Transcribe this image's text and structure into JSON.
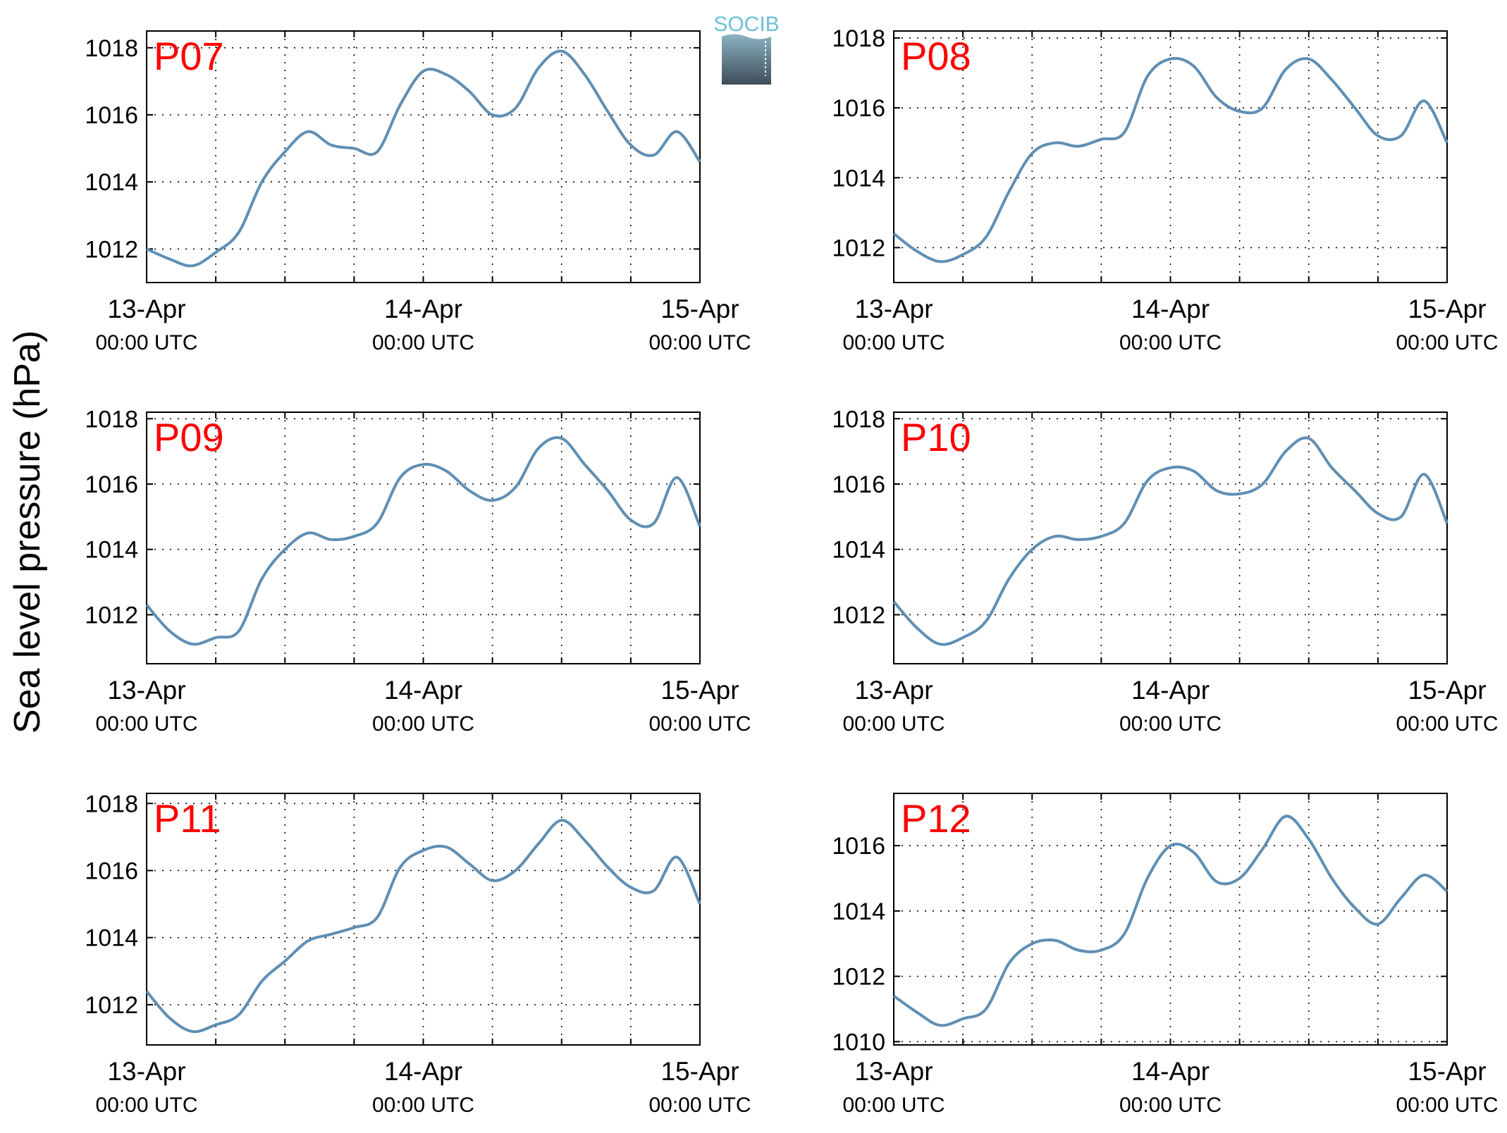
{
  "ylabel": "Sea level pressure (hPa)",
  "logo": {
    "text": "SOCIB"
  },
  "colors": {
    "line": "#5f8fb4",
    "label": "#ff0000",
    "grid": "#000000"
  },
  "chart_data": [
    {
      "type": "line",
      "title": "P07",
      "x_ticks": [
        {
          "date": "13-Apr",
          "time": "00:00 UTC"
        },
        {
          "date": "14-Apr",
          "time": "00:00 UTC"
        },
        {
          "date": "15-Apr",
          "time": "00:00 UTC"
        }
      ],
      "xlim": [
        "13-Apr 00:00 UTC",
        "15-Apr 00:00 UTC"
      ],
      "ylim": [
        1011,
        1018.5
      ],
      "yticks": [
        1012,
        1014,
        1016,
        1018
      ],
      "grid": true,
      "series": [
        {
          "x_hours": [
            0,
            2,
            4,
            6,
            8,
            10,
            12,
            14,
            16,
            18,
            20,
            22,
            24,
            26,
            28,
            30,
            32,
            34,
            36,
            38,
            40,
            42,
            44,
            46,
            48
          ],
          "values": [
            1012.0,
            1011.7,
            1011.5,
            1011.9,
            1012.5,
            1014.0,
            1014.9,
            1015.5,
            1015.1,
            1015.0,
            1014.9,
            1016.3,
            1017.3,
            1017.2,
            1016.7,
            1016.0,
            1016.2,
            1017.4,
            1017.9,
            1017.2,
            1016.1,
            1015.1,
            1014.8,
            1015.5,
            1014.6
          ]
        }
      ]
    },
    {
      "type": "line",
      "title": "P08",
      "x_ticks": [
        {
          "date": "13-Apr",
          "time": "00:00 UTC"
        },
        {
          "date": "14-Apr",
          "time": "00:00 UTC"
        },
        {
          "date": "15-Apr",
          "time": "00:00 UTC"
        }
      ],
      "xlim": [
        "13-Apr 00:00 UTC",
        "15-Apr 00:00 UTC"
      ],
      "ylim": [
        1011,
        1018.2
      ],
      "yticks": [
        1012,
        1014,
        1016,
        1018
      ],
      "grid": true,
      "series": [
        {
          "x_hours": [
            0,
            2,
            4,
            6,
            8,
            10,
            12,
            14,
            16,
            18,
            20,
            22,
            24,
            26,
            28,
            30,
            32,
            34,
            36,
            38,
            40,
            42,
            44,
            46,
            48
          ],
          "values": [
            1012.4,
            1011.9,
            1011.6,
            1011.8,
            1012.3,
            1013.6,
            1014.7,
            1015.0,
            1014.9,
            1015.1,
            1015.3,
            1016.9,
            1017.4,
            1017.2,
            1016.3,
            1015.9,
            1016.0,
            1017.1,
            1017.4,
            1016.8,
            1016.0,
            1015.2,
            1015.2,
            1016.2,
            1015.0
          ]
        }
      ]
    },
    {
      "type": "line",
      "title": "P09",
      "x_ticks": [
        {
          "date": "13-Apr",
          "time": "00:00 UTC"
        },
        {
          "date": "14-Apr",
          "time": "00:00 UTC"
        },
        {
          "date": "15-Apr",
          "time": "00:00 UTC"
        }
      ],
      "xlim": [
        "13-Apr 00:00 UTC",
        "15-Apr 00:00 UTC"
      ],
      "ylim": [
        1010.5,
        1018.2
      ],
      "yticks": [
        1012,
        1014,
        1016,
        1018
      ],
      "grid": true,
      "series": [
        {
          "x_hours": [
            0,
            2,
            4,
            6,
            8,
            10,
            12,
            14,
            16,
            18,
            20,
            22,
            24,
            26,
            28,
            30,
            32,
            34,
            36,
            38,
            40,
            42,
            44,
            46,
            48
          ],
          "values": [
            1012.3,
            1011.5,
            1011.1,
            1011.3,
            1011.5,
            1013.1,
            1014.0,
            1014.5,
            1014.3,
            1014.4,
            1014.8,
            1016.2,
            1016.6,
            1016.4,
            1015.8,
            1015.5,
            1015.9,
            1017.1,
            1017.4,
            1016.6,
            1015.8,
            1014.9,
            1014.8,
            1016.2,
            1014.7
          ]
        }
      ]
    },
    {
      "type": "line",
      "title": "P10",
      "x_ticks": [
        {
          "date": "13-Apr",
          "time": "00:00 UTC"
        },
        {
          "date": "14-Apr",
          "time": "00:00 UTC"
        },
        {
          "date": "15-Apr",
          "time": "00:00 UTC"
        }
      ],
      "xlim": [
        "13-Apr 00:00 UTC",
        "15-Apr 00:00 UTC"
      ],
      "ylim": [
        1010.5,
        1018.2
      ],
      "yticks": [
        1012,
        1014,
        1016,
        1018
      ],
      "grid": true,
      "series": [
        {
          "x_hours": [
            0,
            2,
            4,
            6,
            8,
            10,
            12,
            14,
            16,
            18,
            20,
            22,
            24,
            26,
            28,
            30,
            32,
            34,
            36,
            38,
            40,
            42,
            44,
            46,
            48
          ],
          "values": [
            1012.4,
            1011.6,
            1011.1,
            1011.3,
            1011.8,
            1013.1,
            1014.0,
            1014.4,
            1014.3,
            1014.4,
            1014.8,
            1016.1,
            1016.5,
            1016.4,
            1015.8,
            1015.7,
            1016.0,
            1017.0,
            1017.4,
            1016.5,
            1015.8,
            1015.1,
            1015.0,
            1016.3,
            1014.8
          ]
        }
      ]
    },
    {
      "type": "line",
      "title": "P11",
      "x_ticks": [
        {
          "date": "13-Apr",
          "time": "00:00 UTC"
        },
        {
          "date": "14-Apr",
          "time": "00:00 UTC"
        },
        {
          "date": "15-Apr",
          "time": "00:00 UTC"
        }
      ],
      "xlim": [
        "13-Apr 00:00 UTC",
        "15-Apr 00:00 UTC"
      ],
      "ylim": [
        1010.8,
        1018.3
      ],
      "yticks": [
        1012,
        1014,
        1016,
        1018
      ],
      "grid": true,
      "series": [
        {
          "x_hours": [
            0,
            2,
            4,
            6,
            8,
            10,
            12,
            14,
            16,
            18,
            20,
            22,
            24,
            26,
            28,
            30,
            32,
            34,
            36,
            38,
            40,
            42,
            44,
            46,
            48
          ],
          "values": [
            1012.4,
            1011.6,
            1011.2,
            1011.4,
            1011.7,
            1012.7,
            1013.3,
            1013.9,
            1014.1,
            1014.3,
            1014.6,
            1016.1,
            1016.6,
            1016.7,
            1016.2,
            1015.7,
            1016.0,
            1016.8,
            1017.5,
            1016.9,
            1016.1,
            1015.5,
            1015.4,
            1016.4,
            1015.0
          ]
        }
      ]
    },
    {
      "type": "line",
      "title": "P12",
      "x_ticks": [
        {
          "date": "13-Apr",
          "time": "00:00 UTC"
        },
        {
          "date": "14-Apr",
          "time": "00:00 UTC"
        },
        {
          "date": "15-Apr",
          "time": "00:00 UTC"
        }
      ],
      "xlim": [
        "13-Apr 00:00 UTC",
        "15-Apr 00:00 UTC"
      ],
      "ylim": [
        1009.9,
        1017.6
      ],
      "yticks": [
        1010,
        1012,
        1014,
        1016
      ],
      "grid": true,
      "series": [
        {
          "x_hours": [
            0,
            2,
            4,
            6,
            8,
            10,
            12,
            14,
            16,
            18,
            20,
            22,
            24,
            26,
            28,
            30,
            32,
            34,
            36,
            38,
            40,
            42,
            44,
            46,
            48
          ],
          "values": [
            1011.4,
            1010.9,
            1010.5,
            1010.7,
            1011.0,
            1012.4,
            1013.0,
            1013.1,
            1012.8,
            1012.8,
            1013.3,
            1015.0,
            1016.0,
            1015.8,
            1014.9,
            1015.0,
            1015.9,
            1016.9,
            1016.2,
            1015.0,
            1014.1,
            1013.6,
            1014.4,
            1015.1,
            1014.6
          ]
        }
      ]
    }
  ]
}
